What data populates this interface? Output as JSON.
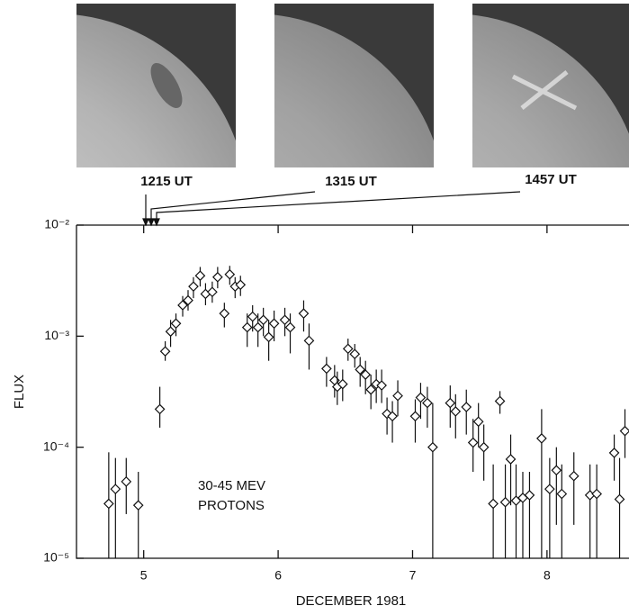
{
  "chart_data": {
    "type": "scatter",
    "image_labels": [
      "1215 UT",
      "1315 UT",
      "1457 UT"
    ],
    "annotation": [
      "30-45 MEV",
      "PROTONS"
    ],
    "xlabel": "DECEMBER  1981",
    "ylabel": "FLUX",
    "log_y": true,
    "xlim": [
      4.5,
      8.61
    ],
    "ylim": [
      1e-05,
      0.01
    ],
    "xticks": [
      5,
      6,
      7,
      8
    ],
    "yticks": [
      {
        "value": 1e-05,
        "label": "10⁻⁵"
      },
      {
        "value": 0.0001,
        "label": "10⁻⁴"
      },
      {
        "value": 0.001,
        "label": "10⁻³"
      },
      {
        "value": 0.01,
        "label": "10⁻²"
      }
    ],
    "series": [
      {
        "color": "#111111",
        "x": [
          4.74,
          4.79,
          4.87,
          4.96,
          5.12,
          5.16,
          5.2,
          5.24,
          5.29,
          5.33,
          5.37,
          5.42,
          5.46,
          5.51,
          5.55,
          5.6,
          5.64,
          5.68,
          5.72,
          5.77,
          5.81,
          5.85,
          5.89,
          5.93,
          5.97,
          6.05,
          6.09,
          6.19,
          6.23,
          6.36,
          6.42,
          6.44,
          6.48,
          6.52,
          6.57,
          6.61,
          6.65,
          6.69,
          6.73,
          6.77,
          6.81,
          6.85,
          6.89,
          7.02,
          7.06,
          7.11,
          7.15,
          7.28,
          7.32,
          7.4,
          7.45,
          7.49,
          7.53,
          7.6,
          7.65,
          7.69,
          7.73,
          7.77,
          7.82,
          7.87,
          7.96,
          8.02,
          8.07,
          8.11,
          8.2,
          8.32,
          8.37,
          8.5,
          8.54,
          8.58
        ],
        "values": [
          3.1e-05,
          4.2e-05,
          4.9e-05,
          3e-05,
          0.00022,
          0.00073,
          0.0011,
          0.0013,
          0.0019,
          0.0021,
          0.0028,
          0.0035,
          0.0024,
          0.0025,
          0.0034,
          0.0016,
          0.0036,
          0.0028,
          0.0029,
          0.0012,
          0.0015,
          0.0012,
          0.0014,
          0.00098,
          0.0013,
          0.0014,
          0.0012,
          0.0016,
          0.00091,
          0.00051,
          0.0004,
          0.00035,
          0.00037,
          0.00077,
          0.00069,
          0.0005,
          0.00045,
          0.00033,
          0.00037,
          0.00036,
          0.0002,
          0.00019,
          0.00029,
          0.00019,
          0.00028,
          0.00025,
          0.0001,
          0.00025,
          0.00021,
          0.00023,
          0.00011,
          0.00017,
          0.0001,
          3.1e-05,
          0.00026,
          3.2e-05,
          7.8e-05,
          3.3e-05,
          3.5e-05,
          3.7e-05,
          0.00012,
          4.2e-05,
          6.2e-05,
          3.8e-05,
          5.5e-05,
          3.7e-05,
          3.8e-05,
          8.9e-05,
          3.4e-05,
          0.00014
        ],
        "error_low": [
          1e-05,
          1e-05,
          2.5e-05,
          1e-05,
          0.00015,
          0.0006,
          0.0008,
          0.001,
          0.0015,
          0.0017,
          0.0022,
          0.0028,
          0.0019,
          0.002,
          0.0027,
          0.0012,
          0.0029,
          0.0022,
          0.0023,
          0.0008,
          0.0011,
          0.0008,
          0.001,
          0.0006,
          0.0009,
          0.001,
          0.0007,
          0.0011,
          0.0005,
          0.00035,
          0.00028,
          0.00024,
          0.00026,
          0.0006,
          0.00052,
          0.00035,
          0.0003,
          0.00022,
          0.00025,
          0.00025,
          0.00013,
          0.00011,
          0.00019,
          0.00011,
          0.00018,
          0.00015,
          1e-05,
          0.00015,
          0.00012,
          0.00013,
          6e-05,
          0.0001,
          5e-05,
          1e-05,
          0.0002,
          1e-05,
          3e-05,
          1e-05,
          1e-05,
          1e-05,
          1e-05,
          1e-05,
          2e-05,
          1e-05,
          2e-05,
          1e-05,
          1e-05,
          5e-05,
          1e-05,
          8e-05
        ],
        "error_high": [
          9e-05,
          8e-05,
          8e-05,
          6e-05,
          0.00035,
          0.0009,
          0.0014,
          0.0016,
          0.0023,
          0.0026,
          0.0034,
          0.0042,
          0.003,
          0.0031,
          0.0042,
          0.002,
          0.0043,
          0.0034,
          0.0035,
          0.0016,
          0.0019,
          0.0016,
          0.0018,
          0.0014,
          0.0017,
          0.0018,
          0.0016,
          0.0021,
          0.0013,
          0.00065,
          0.00055,
          0.00048,
          0.0005,
          0.00095,
          0.00085,
          0.00065,
          0.0006,
          0.00045,
          0.0005,
          0.0005,
          0.00028,
          0.00026,
          0.0004,
          0.00027,
          0.00038,
          0.00035,
          0.00025,
          0.00036,
          0.0003,
          0.00033,
          0.00018,
          0.00025,
          0.00016,
          7e-05,
          0.00032,
          7e-05,
          0.00013,
          7e-05,
          6e-05,
          6e-05,
          0.00022,
          8e-05,
          0.0001,
          7e-05,
          9e-05,
          7e-05,
          7e-05,
          0.00013,
          8e-05,
          0.00022
        ]
      }
    ]
  }
}
